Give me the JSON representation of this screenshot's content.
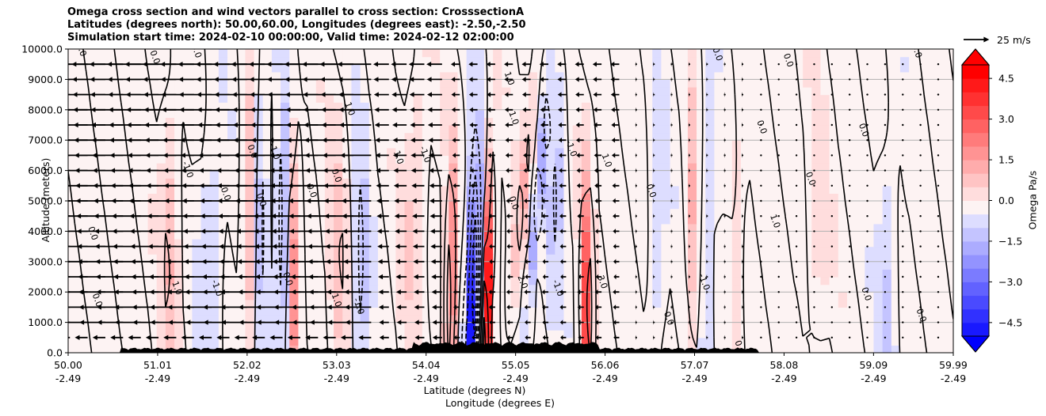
{
  "title": {
    "line1": "Omega cross section and wind vectors parallel to cross section: CrosssectionA",
    "line2": "Latitudes (degrees north): 50.00,60.00, Longitudes (degrees east): -2.50,-2.50",
    "line3": "Simulation start time: 2024-02-10 00:00:00, Valid time: 2024-02-12 02:00:00"
  },
  "chart_data": {
    "type": "heatmap",
    "ylabel": "Altitude (meters)",
    "xlabel_line1": "Latitude (degrees N)",
    "xlabel_line2": "Longitude (degrees E)",
    "xlim": [
      50.0,
      59.99
    ],
    "ylim": [
      0,
      10000
    ],
    "grid": "horizontal",
    "y_ticks": [
      {
        "value": 0,
        "label": "0.0"
      },
      {
        "value": 1000,
        "label": "1000.0"
      },
      {
        "value": 2000,
        "label": "2000.0"
      },
      {
        "value": 3000,
        "label": "3000.0"
      },
      {
        "value": 4000,
        "label": "4000.0"
      },
      {
        "value": 5000,
        "label": "5000.0"
      },
      {
        "value": 6000,
        "label": "6000.0"
      },
      {
        "value": 7000,
        "label": "7000.0"
      },
      {
        "value": 8000,
        "label": "8000.0"
      },
      {
        "value": 9000,
        "label": "9000.0"
      },
      {
        "value": 10000,
        "label": "10000.0"
      }
    ],
    "x_ticks": [
      {
        "value": 50.0,
        "lat": "50.00",
        "lon": "-2.49"
      },
      {
        "value": 51.01,
        "lat": "51.01",
        "lon": "-2.49"
      },
      {
        "value": 52.02,
        "lat": "52.02",
        "lon": "-2.49"
      },
      {
        "value": 53.03,
        "lat": "53.03",
        "lon": "-2.49"
      },
      {
        "value": 54.04,
        "lat": "54.04",
        "lon": "-2.49"
      },
      {
        "value": 55.05,
        "lat": "55.05",
        "lon": "-2.49"
      },
      {
        "value": 56.06,
        "lat": "56.06",
        "lon": "-2.49"
      },
      {
        "value": 57.07,
        "lat": "57.07",
        "lon": "-2.49"
      },
      {
        "value": 58.08,
        "lat": "58.08",
        "lon": "-2.49"
      },
      {
        "value": 59.09,
        "lat": "59.09",
        "lon": "-2.49"
      },
      {
        "value": 59.99,
        "lat": "59.99",
        "lon": "-2.49"
      }
    ],
    "colorbar": {
      "label": "Omega Pa/s",
      "range": [
        -5.0,
        5.0
      ],
      "extend": "both",
      "ticks": [
        {
          "value": 4.5,
          "label": "4.5"
        },
        {
          "value": 3.0,
          "label": "3.0"
        },
        {
          "value": 1.5,
          "label": "1.5"
        },
        {
          "value": 0.0,
          "label": "0.0"
        },
        {
          "value": -1.5,
          "label": "−1.5"
        },
        {
          "value": -3.0,
          "label": "−3.0"
        },
        {
          "value": -4.5,
          "label": "−4.5"
        }
      ]
    },
    "quiver_reference": {
      "speed": 25,
      "label": "25 m/s"
    },
    "contour_levels": [
      -3.0,
      -2.0,
      -1.0,
      0.0,
      1.0,
      2.0,
      3.0
    ],
    "contour_labels": [
      {
        "lat": 50.12,
        "alt": 9950,
        "text": "0.0"
      },
      {
        "lat": 50.95,
        "alt": 9700,
        "text": "0.0"
      },
      {
        "lat": 51.42,
        "alt": 9900,
        "text": "0.0"
      },
      {
        "lat": 51.32,
        "alt": 6000,
        "text": "-1.0"
      },
      {
        "lat": 51.75,
        "alt": 5200,
        "text": "0.0"
      },
      {
        "lat": 52.05,
        "alt": 6600,
        "text": "0.0"
      },
      {
        "lat": 52.15,
        "alt": 5000,
        "text": "0.0"
      },
      {
        "lat": 52.3,
        "alt": 6600,
        "text": "-1.0"
      },
      {
        "lat": 52.72,
        "alt": 5300,
        "text": "0.0"
      },
      {
        "lat": 53.15,
        "alt": 8000,
        "text": "1.0"
      },
      {
        "lat": 53.0,
        "alt": 5800,
        "text": "0.0"
      },
      {
        "lat": 53.7,
        "alt": 6400,
        "text": "1.0"
      },
      {
        "lat": 54.0,
        "alt": 6500,
        "text": "-1.0"
      },
      {
        "lat": 54.95,
        "alt": 9000,
        "text": "1.0"
      },
      {
        "lat": 55.0,
        "alt": 7700,
        "text": "1.0"
      },
      {
        "lat": 55.0,
        "alt": 4900,
        "text": "0.0"
      },
      {
        "lat": 55.1,
        "alt": 2300,
        "text": "2.0"
      },
      {
        "lat": 55.5,
        "alt": 2100,
        "text": "-1.0"
      },
      {
        "lat": 55.65,
        "alt": 6700,
        "text": "-1.0"
      },
      {
        "lat": 56.05,
        "alt": 6300,
        "text": "1.0"
      },
      {
        "lat": 56.0,
        "alt": 2300,
        "text": "3.0"
      },
      {
        "lat": 56.55,
        "alt": 5300,
        "text": "0.0"
      },
      {
        "lat": 56.75,
        "alt": 1100,
        "text": "0.0"
      },
      {
        "lat": 57.15,
        "alt": 2300,
        "text": "-1.0"
      },
      {
        "lat": 57.8,
        "alt": 7400,
        "text": "0.0"
      },
      {
        "lat": 57.95,
        "alt": 4300,
        "text": "1.0"
      },
      {
        "lat": 57.3,
        "alt": 9800,
        "text": "0.0"
      },
      {
        "lat": 58.1,
        "alt": 9600,
        "text": "0.0"
      },
      {
        "lat": 58.35,
        "alt": 5700,
        "text": "0.0"
      },
      {
        "lat": 58.95,
        "alt": 7300,
        "text": "0.0"
      },
      {
        "lat": 58.98,
        "alt": 1900,
        "text": "0.0"
      },
      {
        "lat": 59.55,
        "alt": 9900,
        "text": "0.0"
      },
      {
        "lat": 59.6,
        "alt": 1200,
        "text": "0.0"
      },
      {
        "lat": 50.3,
        "alt": 1700,
        "text": "0.0"
      },
      {
        "lat": 50.25,
        "alt": 3900,
        "text": "0.0"
      },
      {
        "lat": 51.2,
        "alt": 2100,
        "text": "1.0"
      },
      {
        "lat": 51.65,
        "alt": 2100,
        "text": "-1.0"
      },
      {
        "lat": 52.45,
        "alt": 2400,
        "text": "0.0"
      },
      {
        "lat": 53.0,
        "alt": 1700,
        "text": "1.0"
      },
      {
        "lat": 53.25,
        "alt": 1500,
        "text": "-1.0"
      },
      {
        "lat": 57.55,
        "alt": 150,
        "text": "0.0"
      }
    ]
  }
}
